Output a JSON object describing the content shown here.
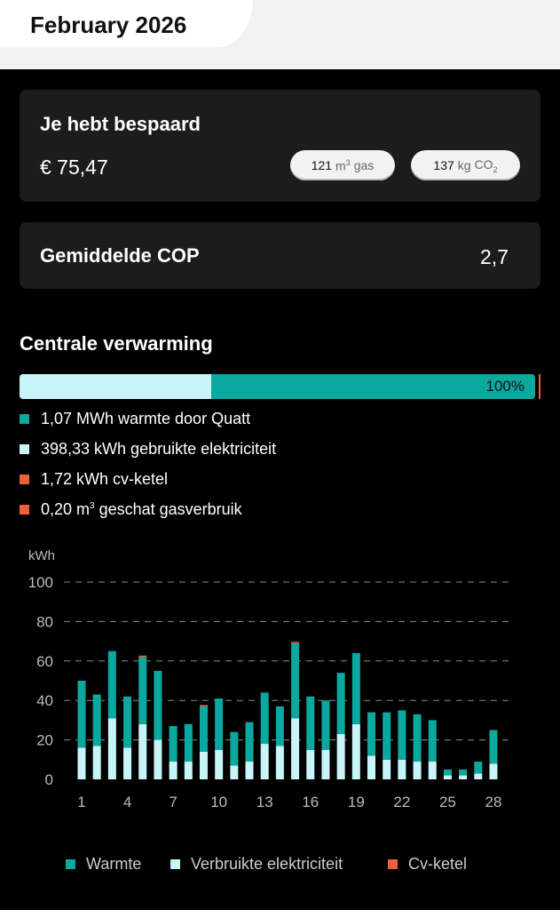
{
  "header": {
    "month": "February 2026"
  },
  "savings": {
    "title": "Je hebt bespaard",
    "amount": "€ 75,47",
    "gas_value": "121",
    "gas_unit": "m",
    "gas_unit_sup": "3",
    "gas_label": "gas",
    "co2_value": "137",
    "co2_unit": "kg",
    "co2_label": "CO",
    "co2_sub": "2"
  },
  "cop": {
    "label": "Gemiddelde COP",
    "value": "2,7"
  },
  "heating": {
    "title": "Centrale verwarming",
    "percent_label": "100%",
    "electricity_fraction": 0.372,
    "items": [
      {
        "text": "1,07 MWh warmte door Quatt",
        "color": "#0aa89e"
      },
      {
        "text": "398,33 kWh gebruikte elektriciteit",
        "color": "#c9f5f8"
      },
      {
        "text": "1,72 kWh cv-ketel",
        "color": "#e8623a"
      },
      {
        "text_pre": "0,20 m",
        "sup": "3",
        "text_post": " geschat gasverbruik",
        "color": "#e8623a"
      }
    ]
  },
  "colors": {
    "heat": "#0aa89e",
    "electricity": "#c9f5f8",
    "boiler": "#e8623a"
  },
  "chart_data": {
    "type": "bar",
    "stacked": true,
    "ylabel": "kWh",
    "ylim": [
      0,
      100
    ],
    "yticks": [
      0,
      20,
      40,
      60,
      80,
      100
    ],
    "xticks": [
      1,
      4,
      7,
      10,
      13,
      16,
      19,
      22,
      25,
      28
    ],
    "grid": true,
    "categories": [
      1,
      2,
      3,
      4,
      5,
      6,
      7,
      8,
      9,
      10,
      11,
      12,
      13,
      14,
      15,
      16,
      17,
      18,
      19,
      20,
      21,
      22,
      23,
      24,
      25,
      26,
      27,
      28
    ],
    "series": [
      {
        "name": "Verbruikte elektriciteit",
        "color": "#c9f5f8",
        "values": [
          16,
          17,
          31,
          16,
          28,
          20,
          9,
          9,
          14,
          15,
          7,
          9,
          18,
          17,
          31,
          15,
          15,
          23,
          28,
          12,
          10,
          10,
          9,
          9,
          2,
          2,
          3,
          8
        ]
      },
      {
        "name": "Warmte",
        "color": "#0aa89e",
        "values": [
          34,
          26,
          34,
          26,
          34,
          35,
          18,
          19,
          23,
          26,
          17,
          20,
          26,
          20,
          38,
          27,
          25,
          31,
          36,
          22,
          24,
          25,
          24,
          21,
          3,
          3,
          6,
          17
        ]
      },
      {
        "name": "Cv-ketel",
        "color": "#e8623a",
        "values": [
          0,
          0,
          0,
          0,
          0.6,
          0,
          0,
          0,
          0.6,
          0,
          0,
          0,
          0,
          0,
          0.5,
          0,
          0,
          0,
          0,
          0,
          0,
          0,
          0,
          0,
          0,
          0,
          0,
          0
        ]
      }
    ]
  },
  "bottom_legend": {
    "heat": "Warmte",
    "electricity": "Verbruikte elektriciteit",
    "boiler": "Cv-ketel"
  }
}
